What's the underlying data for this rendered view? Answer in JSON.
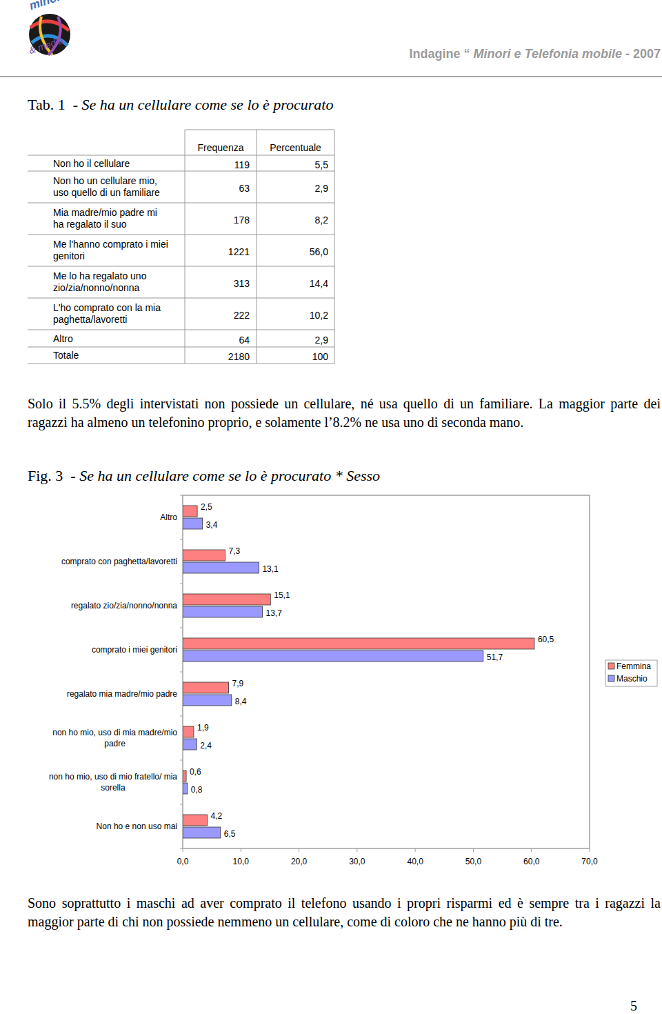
{
  "header": {
    "logo_top": "minori",
    "logo_bottom": "& media",
    "title_parts": [
      "Indagine “ ",
      "Minori e Telefonia mobile",
      " - 2007"
    ]
  },
  "table_caption": {
    "label": "Tab. 1  - ",
    "title": "Se ha un cellulare come se lo è procurato"
  },
  "table": {
    "header": [
      "Frequenza",
      "Percentuale"
    ],
    "rows": [
      [
        "Non ho il cellulare",
        "119",
        "5,5"
      ],
      [
        "Non ho un cellulare mio,\nuso quello di un familiare",
        "63",
        "2,9"
      ],
      [
        "Mia madre/mio padre mi\nha regalato il suo",
        "178",
        "8,2"
      ],
      [
        "Me l'hanno comprato i miei\ngenitori",
        "1221",
        "56,0"
      ],
      [
        "Me lo ha regalato uno\nzio/zia/nonno/nonna",
        "313",
        "14,4"
      ],
      [
        "L'ho comprato con la mia\npaghetta/lavoretti",
        "222",
        "10,2"
      ],
      [
        "Altro",
        "64",
        "2,9"
      ],
      [
        "Totale",
        "2180",
        "100"
      ]
    ]
  },
  "paragraph_1": "Solo il 5.5% degli intervistati non possiede un cellulare, né usa quello di un familiare. La maggior parte dei ragazzi ha almeno un telefonino proprio, e solamente l’8.2% ne usa uno di seconda mano.",
  "figure": {
    "label": "Fig. 3  - "
  },
  "chart_data": {
    "type": "bar",
    "orientation": "horizontal",
    "title": "Se ha un cellulare come se lo è procurato * Sesso",
    "categories": [
      "Altro",
      "comprato con paghetta/lavoretti",
      "regalato zio/zia/nonno/nonna",
      "comprato i miei genitori",
      "regalato mia madre/mio padre",
      "non ho mio, uso di mia madre/mio\npadre",
      "non ho mio, uso di mio fratello/ mia\nsorella",
      "Non ho e non uso mai"
    ],
    "series": [
      {
        "name": "Femmina",
        "color": "#ff8080",
        "values": [
          2.5,
          7.3,
          15.1,
          60.5,
          7.9,
          1.9,
          0.6,
          4.2
        ],
        "value_labels": [
          "2,5",
          "7,3",
          "15,1",
          "60,5",
          "7,9",
          "1,9",
          "0,6",
          "4,2"
        ]
      },
      {
        "name": "Maschio",
        "color": "#9999ff",
        "values": [
          3.4,
          13.1,
          13.7,
          51.7,
          8.4,
          2.4,
          0.8,
          6.5
        ],
        "value_labels": [
          "3,4",
          "13,1",
          "13,7",
          "51,7",
          "8,4",
          "2,4",
          "0,8",
          "6,5"
        ]
      }
    ],
    "xlim": [
      0,
      70
    ],
    "xticks": [
      {
        "value": 0,
        "label": "0,0"
      },
      {
        "value": 10,
        "label": "10,0"
      },
      {
        "value": 20,
        "label": "20,0"
      },
      {
        "value": 30,
        "label": "30,0"
      },
      {
        "value": 40,
        "label": "40,0"
      },
      {
        "value": 50,
        "label": "50,0"
      },
      {
        "value": 60,
        "label": "60,0"
      },
      {
        "value": 70,
        "label": "70,0"
      }
    ],
    "grid": false,
    "legend": "right",
    "data_labels": true
  },
  "paragraph_2": "Sono soprattutto i maschi ad aver comprato il telefono usando i propri risparmi ed è sempre tra i ragazzi la maggior parte di chi non possiede nemmeno un cellulare, come di coloro che ne hanno più di tre.",
  "page_number": "5"
}
